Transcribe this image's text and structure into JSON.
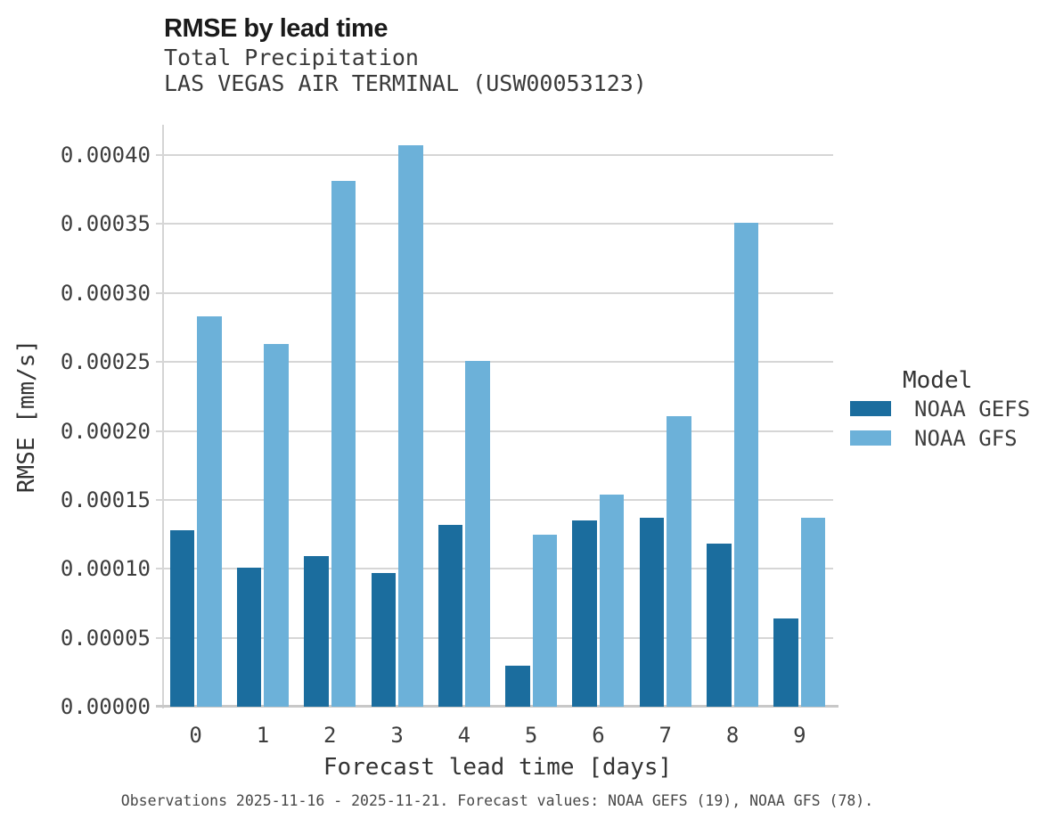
{
  "header": {
    "title": "RMSE by lead time",
    "subtitle1": "Total Precipitation",
    "subtitle2": "LAS VEGAS AIR TERMINAL (USW00053123)"
  },
  "legend": {
    "title": "Model",
    "entries": [
      {
        "label": "NOAA GEFS",
        "color": "#1b6d9e"
      },
      {
        "label": "NOAA GFS",
        "color": "#6cb1d9"
      }
    ]
  },
  "caption": "Observations 2025-11-16 - 2025-11-21. Forecast values: NOAA GEFS (19), NOAA GFS (78).",
  "colors": {
    "gefs_dark_blue": "#1b6d9e",
    "gfs_light_blue": "#6cb1d9",
    "gridline": "#d6d6d6",
    "axis_line": "#c8c8c8",
    "title_text": "#1a1a1a",
    "body_text": "#3d3d3d"
  },
  "chart_data": {
    "type": "bar",
    "title": "RMSE by lead time",
    "subtitle": [
      "Total Precipitation",
      "LAS VEGAS AIR TERMINAL (USW00053123)"
    ],
    "xlabel": "Forecast lead time [days]",
    "ylabel": "RMSE [mm/s]",
    "categories": [
      "0",
      "1",
      "2",
      "3",
      "4",
      "5",
      "6",
      "7",
      "8",
      "9"
    ],
    "series": [
      {
        "name": "NOAA GEFS",
        "color": "#1b6d9e",
        "values": [
          0.000128,
          0.000101,
          0.000109,
          9.7e-05,
          0.000132,
          3e-05,
          0.000135,
          0.000137,
          0.000118,
          6.4e-05
        ]
      },
      {
        "name": "NOAA GFS",
        "color": "#6cb1d9",
        "values": [
          0.000283,
          0.000263,
          0.000381,
          0.000407,
          0.000251,
          0.000125,
          0.000154,
          0.000211,
          0.000351,
          0.000137
        ]
      }
    ],
    "ylim": [
      0,
      0.000422
    ],
    "yticks": {
      "values": [
        0.0,
        5e-05,
        0.0001,
        0.00015,
        0.0002,
        0.00025,
        0.0003,
        0.00035,
        0.0004
      ],
      "labels": [
        "0.00000",
        "0.00005",
        "0.00010",
        "0.00015",
        "0.00020",
        "0.00025",
        "0.00030",
        "0.00035",
        "0.00040"
      ]
    },
    "grid": "horizontal",
    "legend_position": "right",
    "legend_title": "Model"
  }
}
